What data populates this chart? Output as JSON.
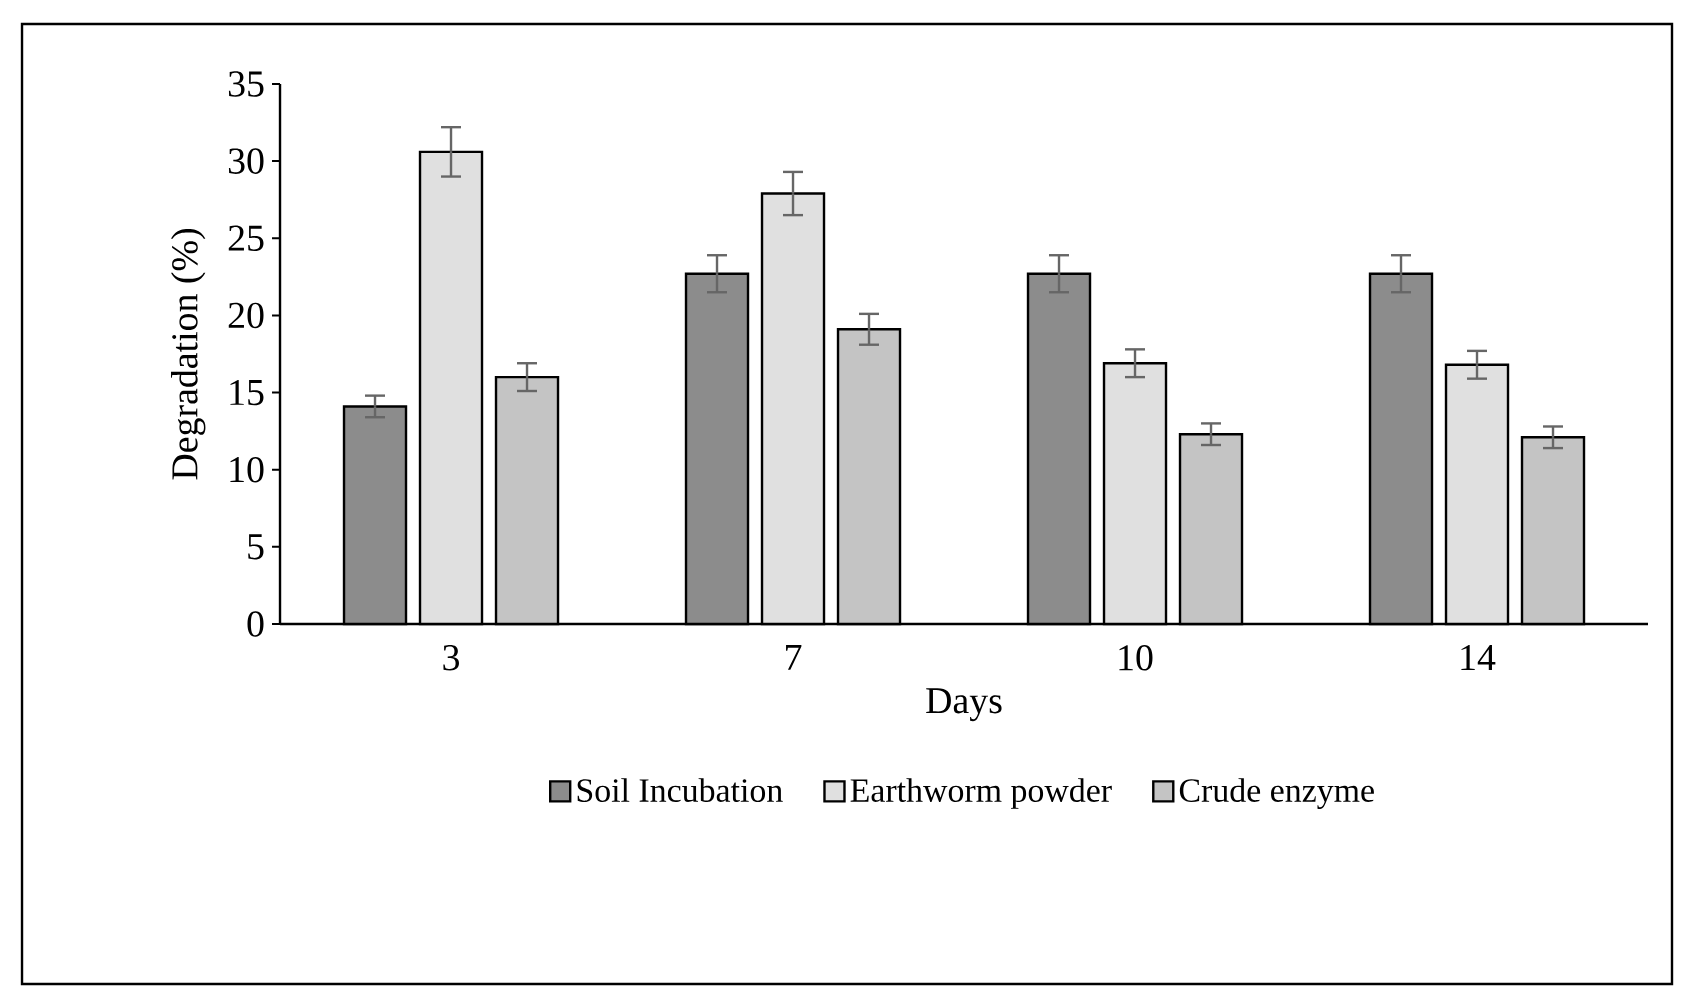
{
  "chart_data": {
    "type": "bar",
    "xlabel": "Days",
    "ylabel": "Degradation (%)",
    "categories": [
      "3",
      "7",
      "10",
      "14"
    ],
    "series": [
      {
        "name": "Soil Incubation",
        "color": "#8c8c8c",
        "values": [
          14.1,
          22.7,
          22.7,
          22.7
        ],
        "errors": [
          0.7,
          1.2,
          1.2,
          1.2
        ]
      },
      {
        "name": "Earthworm powder",
        "color": "#e0e0e0",
        "values": [
          30.6,
          27.9,
          16.9,
          16.8
        ],
        "errors": [
          1.6,
          1.4,
          0.9,
          0.9
        ]
      },
      {
        "name": "Crude enzyme",
        "color": "#c4c4c4",
        "values": [
          16.0,
          19.1,
          12.3,
          12.1
        ],
        "errors": [
          0.9,
          1.0,
          0.7,
          0.7
        ]
      }
    ],
    "ylim": [
      0,
      35
    ],
    "yticks": [
      0,
      5,
      10,
      15,
      20,
      25,
      30,
      35
    ],
    "grid": false,
    "legend": "bottom"
  }
}
